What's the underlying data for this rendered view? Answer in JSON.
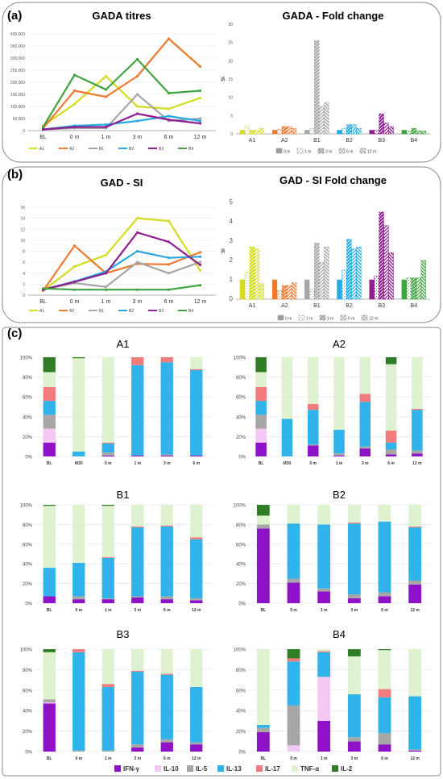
{
  "panel_labels": {
    "a": "(a)",
    "b": "(b)",
    "c": "(c)"
  },
  "colors": {
    "A1": "#d4dc1e",
    "A2": "#ee7a2f",
    "B1": "#a6a6a6",
    "B2": "#29a9e1",
    "B3": "#8e1f8e",
    "B4": "#3fa33f",
    "IFN": "#8e12c8",
    "IL10": "#f4c8f4",
    "IL5": "#a6a6a6",
    "IL13": "#2fb3ea",
    "IL17": "#f07c7c",
    "TNF": "#dff2cf",
    "IL2": "#2f7d24"
  },
  "chart_data": [
    {
      "id": "gada-titres",
      "type": "line",
      "title": "GADA titres",
      "x": [
        "BL",
        "0 m",
        "1 m",
        "3 m",
        "6 m",
        "12 m"
      ],
      "ylim": [
        0,
        400000
      ],
      "yticks": [
        "0",
        "50,000",
        "100,000",
        "150,000",
        "200,000",
        "250,000",
        "300,000",
        "350,000",
        "400,000"
      ],
      "series": [
        {
          "name": "A1",
          "values": [
            20000,
            110000,
            225000,
            100000,
            90000,
            135000
          ]
        },
        {
          "name": "A2",
          "values": [
            10000,
            165000,
            140000,
            225000,
            380000,
            265000
          ]
        },
        {
          "name": "B1",
          "values": [
            5000,
            10000,
            10000,
            150000,
            40000,
            50000
          ]
        },
        {
          "name": "B2",
          "values": [
            5000,
            20000,
            25000,
            40000,
            60000,
            40000
          ]
        },
        {
          "name": "B3",
          "values": [
            5000,
            15000,
            15000,
            70000,
            45000,
            30000
          ]
        },
        {
          "name": "B4",
          "values": [
            15000,
            230000,
            170000,
            295000,
            155000,
            165000
          ]
        }
      ]
    },
    {
      "id": "gada-fold",
      "type": "bar",
      "title": "GADA - Fold change",
      "ylabel": "SI",
      "categories": [
        "A1",
        "A2",
        "B1",
        "B2",
        "B3",
        "B4"
      ],
      "ylim": [
        0,
        30
      ],
      "yticks": [
        "0",
        "5",
        "10",
        "15",
        "20",
        "25",
        "30"
      ],
      "series": [
        {
          "name": "0 m",
          "values": [
            1.0,
            1.0,
            1.0,
            1.0,
            1.0,
            1.0
          ]
        },
        {
          "name": "1 m",
          "values": [
            2.0,
            1.2,
            1.5,
            1.5,
            1.0,
            0.8
          ]
        },
        {
          "name": "3 m",
          "values": [
            1.0,
            2.0,
            25.5,
            2.5,
            5.5,
            1.5
          ]
        },
        {
          "name": "6 m",
          "values": [
            1.0,
            2.0,
            7.5,
            2.5,
            3.0,
            0.8
          ]
        },
        {
          "name": "12 m",
          "values": [
            1.5,
            1.5,
            8.5,
            1.5,
            2.0,
            0.8
          ]
        }
      ]
    },
    {
      "id": "gad-si",
      "type": "line",
      "title": "GAD - SI",
      "x": [
        "BL",
        "0 m",
        "1 m",
        "3 m",
        "6 m",
        "12 m"
      ],
      "ylim": [
        0,
        16
      ],
      "yticks": [
        "0",
        "2",
        "4",
        "6",
        "8",
        "10",
        "12",
        "14",
        "16"
      ],
      "series": [
        {
          "name": "A1",
          "values": [
            0.8,
            5.2,
            7.3,
            14.0,
            13.5,
            4.5
          ]
        },
        {
          "name": "A2",
          "values": [
            0.8,
            9.0,
            4.0,
            5.7,
            5.6,
            7.8
          ]
        },
        {
          "name": "B1",
          "values": [
            1.0,
            2.2,
            1.5,
            6.0,
            4.0,
            6.0
          ]
        },
        {
          "name": "B2",
          "values": [
            1.0,
            2.5,
            4.3,
            8.0,
            6.8,
            7.0
          ]
        },
        {
          "name": "B3",
          "values": [
            1.0,
            2.4,
            4.0,
            11.4,
            9.7,
            5.5
          ]
        },
        {
          "name": "B4",
          "values": [
            1.2,
            1.0,
            1.0,
            1.0,
            1.0,
            1.8
          ]
        }
      ]
    },
    {
      "id": "gad-si-fold",
      "type": "bar",
      "title": "GAD - SI Fold change",
      "ylabel": "SI",
      "categories": [
        "A1",
        "A2",
        "B1",
        "B2",
        "B3",
        "B4"
      ],
      "ylim": [
        0,
        5
      ],
      "yticks": [
        "0",
        "1",
        "2",
        "3",
        "4",
        "5"
      ],
      "series": [
        {
          "name": "0 m",
          "values": [
            1.0,
            1.0,
            1.0,
            1.0,
            1.0,
            1.0
          ]
        },
        {
          "name": "1 m",
          "values": [
            1.4,
            0.45,
            0.5,
            1.5,
            1.2,
            1.1
          ]
        },
        {
          "name": "3 m",
          "values": [
            2.7,
            0.7,
            2.9,
            3.1,
            4.5,
            1.1
          ]
        },
        {
          "name": "6 m",
          "values": [
            2.6,
            0.7,
            1.9,
            2.6,
            3.8,
            1.1
          ]
        },
        {
          "name": "12 m",
          "values": [
            0.8,
            0.85,
            2.7,
            2.7,
            2.4,
            2.0
          ]
        }
      ]
    },
    {
      "id": "A1",
      "type": "bar",
      "stacked": true,
      "title": "A1",
      "categories": [
        "BL",
        "M30",
        "0 m",
        "1 m",
        "3 m",
        "6 m"
      ],
      "yticks": [
        "0%",
        "20%",
        "40%",
        "60%",
        "80%",
        "100%"
      ],
      "series": [
        {
          "name": "IFN-γ",
          "values": [
            14,
            0,
            1,
            1,
            1,
            1
          ]
        },
        {
          "name": "IL-10",
          "values": [
            14,
            0,
            0,
            0,
            0,
            0
          ]
        },
        {
          "name": "IL-5",
          "values": [
            14,
            0,
            3,
            0,
            1,
            0
          ]
        },
        {
          "name": "IL-13",
          "values": [
            14,
            5,
            9,
            91,
            93,
            86
          ]
        },
        {
          "name": "IL-17",
          "values": [
            14,
            0,
            1,
            8,
            5,
            1
          ]
        },
        {
          "name": "TNF-α",
          "values": [
            15,
            94,
            86,
            0,
            0,
            12
          ]
        },
        {
          "name": "IL-2",
          "values": [
            15,
            1,
            0,
            0,
            0,
            0
          ]
        }
      ]
    },
    {
      "id": "A2",
      "type": "bar",
      "stacked": true,
      "title": "A2",
      "categories": [
        "BL",
        "M30",
        "0 m",
        "1 m",
        "3 m",
        "6 m",
        "12 m"
      ],
      "yticks": [
        "0%",
        "20%",
        "40%",
        "60%",
        "80%",
        "100%"
      ],
      "series": [
        {
          "name": "IFN-γ",
          "values": [
            14,
            0,
            11,
            1,
            8,
            2,
            3
          ]
        },
        {
          "name": "IL-10",
          "values": [
            14,
            0,
            0,
            0,
            0,
            0,
            0
          ]
        },
        {
          "name": "IL-5",
          "values": [
            14,
            0,
            1,
            2,
            2,
            5,
            3
          ]
        },
        {
          "name": "IL-13",
          "values": [
            14,
            38,
            35,
            24,
            45,
            7,
            41
          ]
        },
        {
          "name": "IL-17",
          "values": [
            14,
            0,
            6,
            0,
            8,
            12,
            1
          ]
        },
        {
          "name": "TNF-α",
          "values": [
            15,
            62,
            47,
            73,
            37,
            67,
            52
          ]
        },
        {
          "name": "IL-2",
          "values": [
            15,
            0,
            0,
            0,
            0,
            7,
            0
          ]
        }
      ]
    },
    {
      "id": "B1",
      "type": "bar",
      "stacked": true,
      "title": "B1",
      "categories": [
        "BL",
        "0 m",
        "1 m",
        "3 m",
        "6 m",
        "12 m"
      ],
      "yticks": [
        "0%",
        "20%",
        "40%",
        "60%",
        "80%",
        "100%"
      ],
      "series": [
        {
          "name": "IFN-γ",
          "values": [
            7,
            4,
            4,
            6,
            4,
            3
          ]
        },
        {
          "name": "IL-10",
          "values": [
            0,
            0,
            0,
            0,
            0,
            0
          ]
        },
        {
          "name": "IL-5",
          "values": [
            0,
            3,
            1,
            1,
            3,
            2
          ]
        },
        {
          "name": "IL-13",
          "values": [
            29,
            34,
            41,
            70,
            71,
            60
          ]
        },
        {
          "name": "IL-17",
          "values": [
            0,
            0,
            1,
            1,
            1,
            2
          ]
        },
        {
          "name": "TNF-α",
          "values": [
            63,
            59,
            52,
            22,
            21,
            33
          ]
        },
        {
          "name": "IL-2",
          "values": [
            1,
            0,
            1,
            0,
            0,
            0
          ]
        }
      ]
    },
    {
      "id": "B2",
      "type": "bar",
      "stacked": true,
      "title": "B2",
      "categories": [
        "BL",
        "0 m",
        "1 m",
        "3 m",
        "6 m",
        "12 m"
      ],
      "yticks": [
        "0%",
        "20%",
        "40%",
        "60%",
        "80%",
        "100%"
      ],
      "series": [
        {
          "name": "IFN-γ",
          "values": [
            76,
            21,
            12,
            5,
            7,
            19
          ]
        },
        {
          "name": "IL-10",
          "values": [
            0,
            0,
            0,
            0,
            0,
            0
          ]
        },
        {
          "name": "IL-5",
          "values": [
            4,
            4,
            3,
            4,
            4,
            4
          ]
        },
        {
          "name": "IL-13",
          "values": [
            0,
            56,
            65,
            72,
            72,
            54
          ]
        },
        {
          "name": "IL-17",
          "values": [
            0,
            0,
            0,
            1,
            0,
            1
          ]
        },
        {
          "name": "TNF-α",
          "values": [
            9,
            19,
            20,
            18,
            17,
            22
          ]
        },
        {
          "name": "IL-2",
          "values": [
            11,
            0,
            0,
            0,
            0,
            0
          ]
        }
      ]
    },
    {
      "id": "B3",
      "type": "bar",
      "stacked": true,
      "title": "B3",
      "categories": [
        "BL",
        "0 m",
        "1 m",
        "3 m",
        "6 m",
        "12 m"
      ],
      "yticks": [
        "0%",
        "20%",
        "40%",
        "60%",
        "80%",
        "100%"
      ],
      "series": [
        {
          "name": "IFN-γ",
          "values": [
            47,
            0,
            0,
            4,
            9,
            7
          ]
        },
        {
          "name": "IL-10",
          "values": [
            1,
            0,
            0,
            0,
            0,
            0
          ]
        },
        {
          "name": "IL-5",
          "values": [
            3,
            1,
            1,
            3,
            3,
            2
          ]
        },
        {
          "name": "IL-13",
          "values": [
            0,
            96,
            62,
            71,
            63,
            54
          ]
        },
        {
          "name": "IL-17",
          "values": [
            0,
            3,
            3,
            1,
            1,
            0
          ]
        },
        {
          "name": "TNF-α",
          "values": [
            46,
            0,
            34,
            21,
            24,
            37
          ]
        },
        {
          "name": "IL-2",
          "values": [
            3,
            0,
            0,
            0,
            0,
            0
          ]
        }
      ]
    },
    {
      "id": "B4",
      "type": "bar",
      "stacked": true,
      "title": "B4",
      "categories": [
        "BL",
        "0 m",
        "1 m",
        "3 m",
        "6 m",
        "12 m"
      ],
      "yticks": [
        "0%",
        "20%",
        "40%",
        "60%",
        "80%",
        "100%"
      ],
      "series": [
        {
          "name": "IFN-γ",
          "values": [
            19,
            0,
            30,
            10,
            7,
            1
          ]
        },
        {
          "name": "IL-10",
          "values": [
            0,
            6,
            43,
            0,
            0,
            0
          ]
        },
        {
          "name": "IL-5",
          "values": [
            4,
            39,
            0,
            4,
            11,
            1
          ]
        },
        {
          "name": "IL-13",
          "values": [
            3,
            43,
            24,
            42,
            35,
            52
          ]
        },
        {
          "name": "IL-17",
          "values": [
            0,
            3,
            1,
            0,
            8,
            0
          ]
        },
        {
          "name": "TNF-α",
          "values": [
            74,
            0,
            2,
            37,
            38,
            46
          ]
        },
        {
          "name": "IL-2",
          "values": [
            0,
            9,
            0,
            7,
            1,
            0
          ]
        }
      ]
    }
  ]
}
